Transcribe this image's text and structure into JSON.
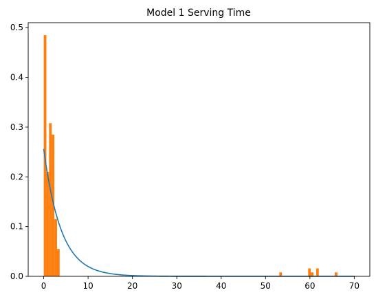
{
  "chart_data": {
    "type": "bar",
    "title": "Model 1 Serving Time",
    "xlabel": "",
    "ylabel": "",
    "xlim": [
      -3.5,
      73.5
    ],
    "ylim": [
      0,
      0.51
    ],
    "xticks": [
      "0",
      "10",
      "20",
      "30",
      "40",
      "50",
      "60",
      "70"
    ],
    "xtick_values": [
      0,
      10,
      20,
      30,
      40,
      50,
      60,
      70
    ],
    "yticks": [
      "0.0",
      "0.1",
      "0.2",
      "0.3",
      "0.4",
      "0.5"
    ],
    "ytick_values": [
      0,
      0.1,
      0.2,
      0.3,
      0.4,
      0.5
    ],
    "grid": false,
    "legend": "none",
    "series": [
      {
        "kind": "histogram",
        "color": "#ff7f0e",
        "bins": [
          {
            "x0": 0.0,
            "x1": 0.6,
            "value": 0.485
          },
          {
            "x0": 0.6,
            "x1": 1.2,
            "value": 0.21
          },
          {
            "x0": 1.2,
            "x1": 1.8,
            "value": 0.308
          },
          {
            "x0": 1.8,
            "x1": 2.4,
            "value": 0.285
          },
          {
            "x0": 2.4,
            "x1": 3.0,
            "value": 0.115
          },
          {
            "x0": 3.0,
            "x1": 3.6,
            "value": 0.055
          },
          {
            "x0": 53.1,
            "x1": 53.7,
            "value": 0.008
          },
          {
            "x0": 59.6,
            "x1": 60.2,
            "value": 0.016
          },
          {
            "x0": 60.2,
            "x1": 60.8,
            "value": 0.008
          },
          {
            "x0": 61.4,
            "x1": 62.0,
            "value": 0.016
          },
          {
            "x0": 65.6,
            "x1": 66.2,
            "value": 0.008
          }
        ]
      },
      {
        "kind": "line",
        "color": "#1f77b4",
        "function": "exponential_pdf",
        "rate": 0.256,
        "x_range": [
          0,
          70
        ]
      }
    ]
  }
}
